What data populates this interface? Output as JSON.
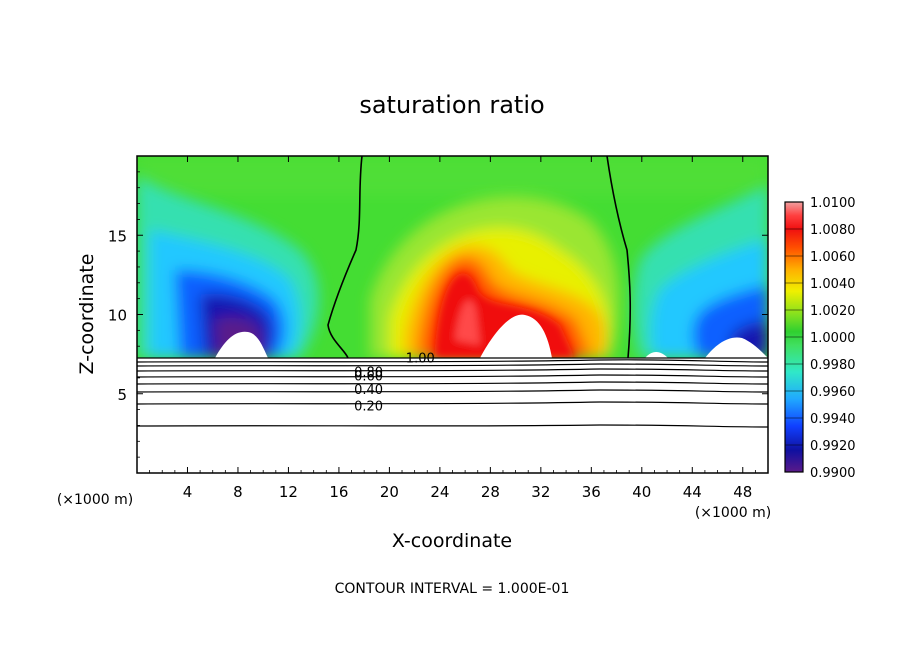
{
  "chart_data": {
    "type": "heatmap",
    "title": "saturation ratio",
    "xlabel": "X-coordinate",
    "ylabel": "Z-coordinate",
    "x_unit_left": "(×1000 m)",
    "x_unit_right": "(×1000 m)",
    "footer": "CONTOUR INTERVAL = 1.000E-01",
    "xlim": [
      0,
      50
    ],
    "ylim": [
      0,
      20
    ],
    "x_ticks": [
      4,
      8,
      12,
      16,
      20,
      24,
      28,
      32,
      36,
      40,
      44,
      48
    ],
    "x_tick_labels": [
      "4",
      "8",
      "12",
      "16",
      "20",
      "24",
      "28",
      "32",
      "36",
      "40",
      "44",
      "48"
    ],
    "y_ticks": [
      5,
      10,
      15
    ],
    "y_tick_labels": [
      "5",
      "10",
      "15"
    ],
    "colorbar": {
      "min": 0.99,
      "max": 1.01,
      "labels": [
        "1.0100",
        "1.0080",
        "1.0060",
        "1.0040",
        "1.0020",
        "1.0000",
        "0.9980",
        "0.9960",
        "0.9940",
        "0.9920",
        "0.9900"
      ]
    },
    "contour_lines": [
      {
        "level": 1.0,
        "label": "1.00",
        "label_x": 21.3,
        "label_y": 7.3
      },
      {
        "level": 0.8,
        "label": "0.80",
        "label_x": 17.2,
        "label_y": 6.4
      },
      {
        "level": 0.6,
        "label": "0.60",
        "label_x": 17.2,
        "label_y": 6.15
      },
      {
        "level": 0.4,
        "label": "0.40",
        "label_x": 17.2,
        "label_y": 5.3
      },
      {
        "level": 0.2,
        "label": "0.20",
        "label_x": 17.2,
        "label_y": 4.25
      }
    ],
    "cloud_base_z": 7.3
  }
}
